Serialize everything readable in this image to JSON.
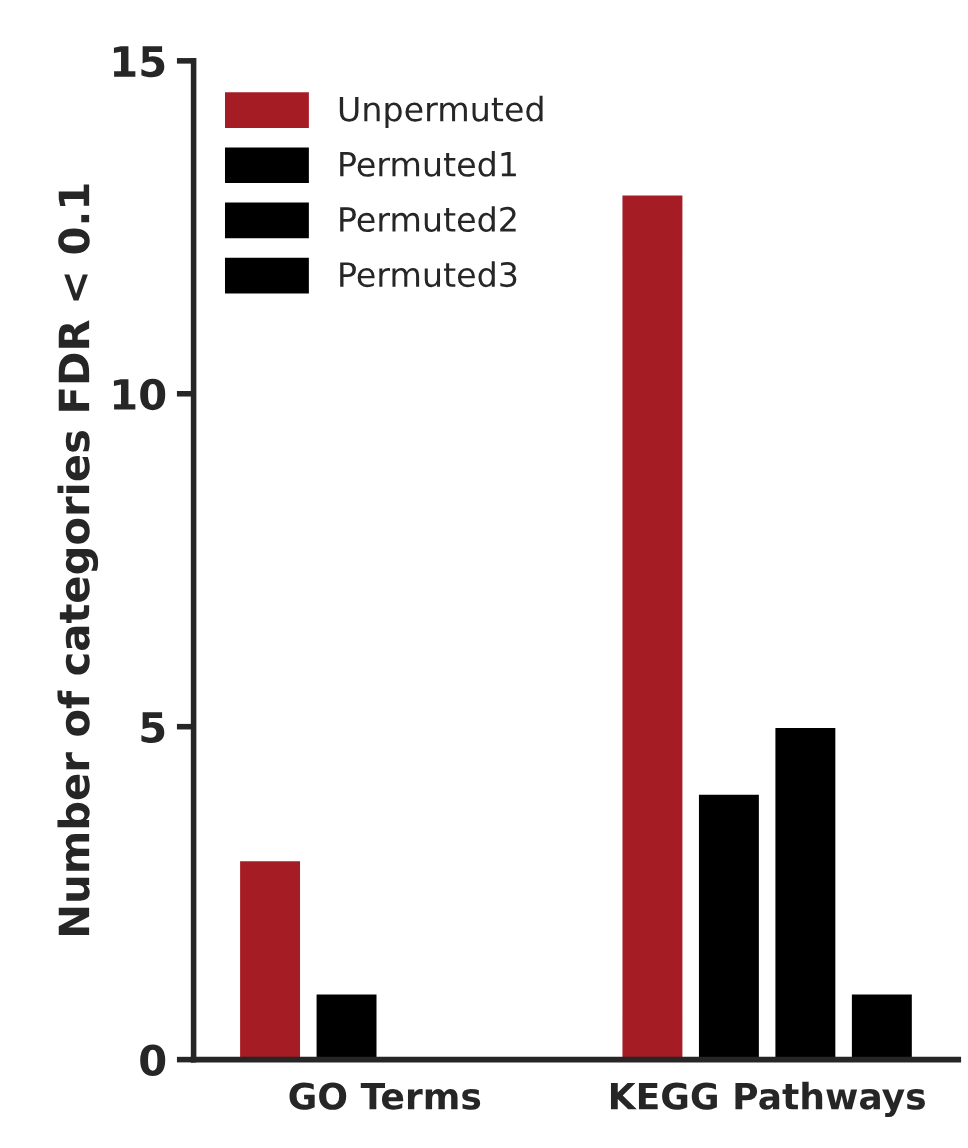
{
  "chart_data": {
    "type": "bar",
    "ylabel": "Number of categories FDR < 0.1",
    "categories": [
      "GO Terms",
      "KEGG Pathways"
    ],
    "series": [
      {
        "name": "Unpermuted",
        "color": "#a51c24",
        "values": [
          3,
          13
        ]
      },
      {
        "name": "Permuted1",
        "color": "#000000",
        "values": [
          1,
          4
        ]
      },
      {
        "name": "Permuted2",
        "color": "#000000",
        "values": [
          null,
          5
        ]
      },
      {
        "name": "Permuted3",
        "color": "#000000",
        "values": [
          null,
          1
        ]
      }
    ],
    "ylim": [
      0,
      15
    ],
    "yticks": [
      0,
      5,
      10,
      15
    ],
    "grid": false,
    "legend": "top left"
  }
}
